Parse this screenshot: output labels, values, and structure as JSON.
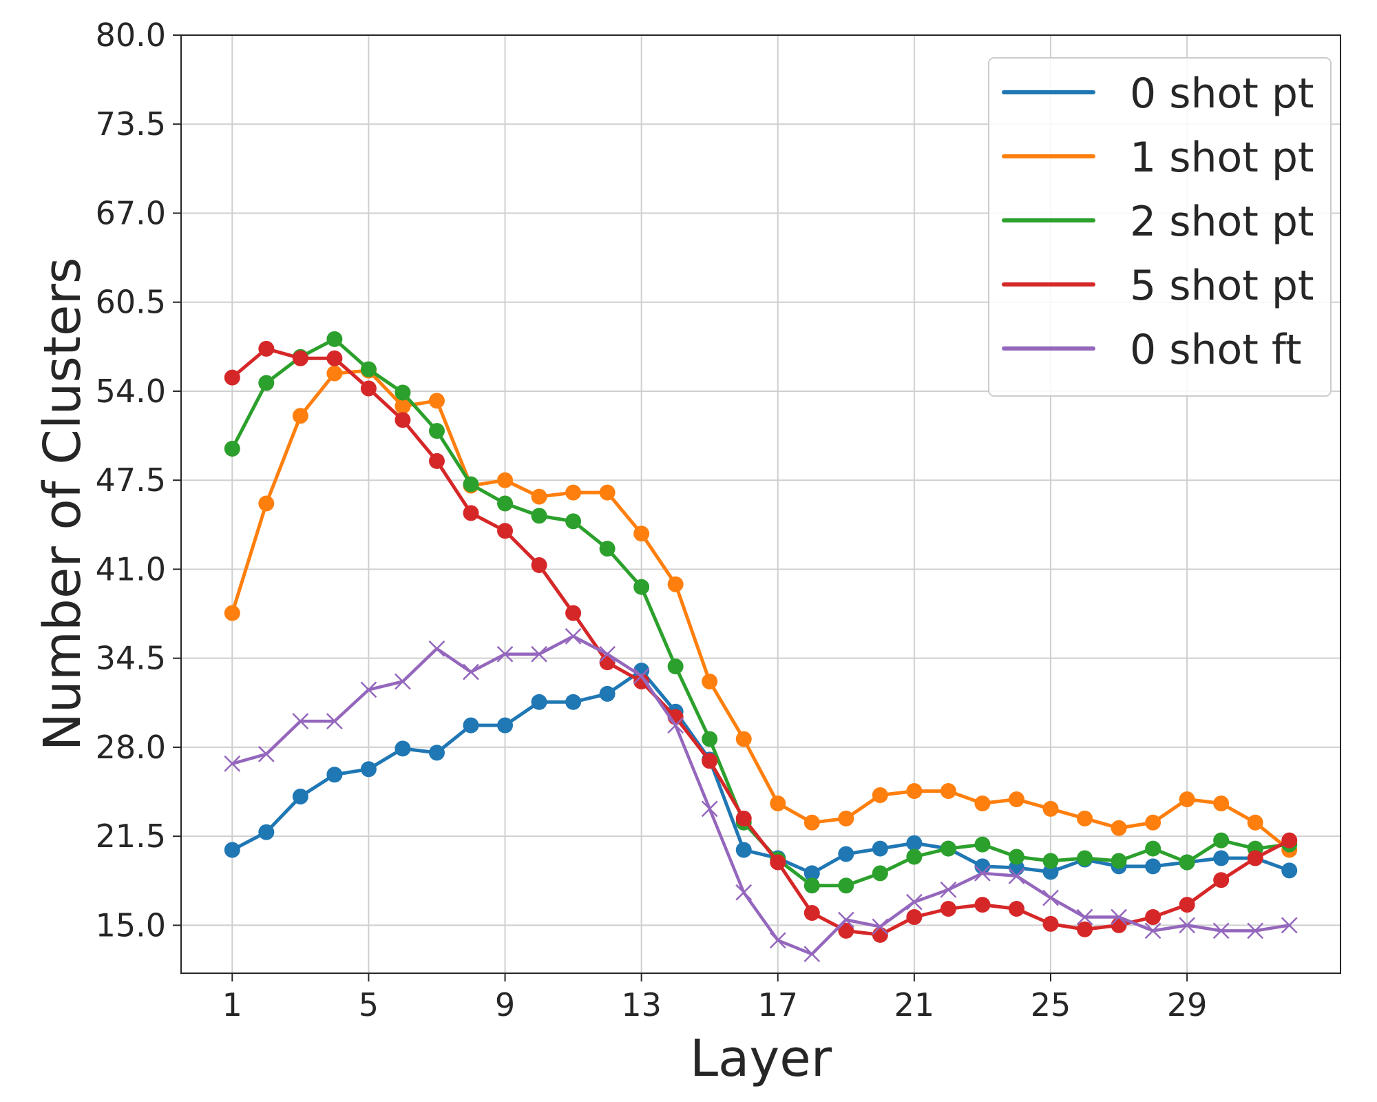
{
  "chart_data": {
    "type": "line",
    "title": "",
    "xlabel": "Layer",
    "ylabel": "Number of Clusters",
    "xlim": [
      -0.5,
      33.5
    ],
    "ylim": [
      11.5,
      80.0
    ],
    "xticks": [
      1,
      5,
      9,
      13,
      17,
      21,
      25,
      29
    ],
    "yticks": [
      15.0,
      21.5,
      28.0,
      34.5,
      41.0,
      47.5,
      54.0,
      60.5,
      67.0,
      73.5,
      80.0
    ],
    "xtick_labels": [
      "1",
      "5",
      "9",
      "13",
      "17",
      "21",
      "25",
      "29"
    ],
    "ytick_labels": [
      "15.0",
      "21.5",
      "28.0",
      "34.5",
      "41.0",
      "47.5",
      "54.0",
      "60.5",
      "67.0",
      "73.5",
      "80.0"
    ],
    "grid": true,
    "legend_position": "top-right",
    "x": [
      1,
      2,
      3,
      4,
      5,
      6,
      7,
      8,
      9,
      10,
      11,
      12,
      13,
      14,
      15,
      16,
      17,
      18,
      19,
      20,
      21,
      22,
      23,
      24,
      25,
      26,
      27,
      28,
      29,
      30,
      31,
      32
    ],
    "series": [
      {
        "name": "0 shot pt",
        "color": "#1f77b4",
        "marker": "circle",
        "values": [
          20.5,
          21.8,
          24.4,
          26.0,
          26.4,
          27.9,
          27.6,
          29.6,
          29.6,
          31.3,
          31.3,
          31.9,
          33.6,
          30.6,
          27.1,
          20.5,
          19.9,
          18.8,
          20.2,
          20.6,
          21.0,
          20.6,
          19.3,
          19.2,
          18.9,
          19.8,
          19.3,
          19.3,
          19.6,
          19.9,
          19.9,
          19.0
        ]
      },
      {
        "name": "1 shot pt",
        "color": "#ff7f0e",
        "marker": "circle",
        "values": [
          37.8,
          45.8,
          52.2,
          55.3,
          55.5,
          52.9,
          53.3,
          47.1,
          47.5,
          46.3,
          46.6,
          46.6,
          43.6,
          39.9,
          32.8,
          28.6,
          23.9,
          22.5,
          22.8,
          24.5,
          24.8,
          24.8,
          23.9,
          24.2,
          23.5,
          22.8,
          22.1,
          22.5,
          24.2,
          23.9,
          22.5,
          20.5
        ]
      },
      {
        "name": "2 shot pt",
        "color": "#2ca02c",
        "marker": "circle",
        "values": [
          49.8,
          54.6,
          56.5,
          57.8,
          55.6,
          53.9,
          51.1,
          47.2,
          45.8,
          44.9,
          44.5,
          42.5,
          39.7,
          33.9,
          28.6,
          22.5,
          19.8,
          17.9,
          17.9,
          18.8,
          20.0,
          20.6,
          20.9,
          20.0,
          19.7,
          19.9,
          19.7,
          20.6,
          19.6,
          21.2,
          20.6,
          20.9
        ]
      },
      {
        "name": "5 shot pt",
        "color": "#d62728",
        "marker": "circle",
        "values": [
          55.0,
          57.1,
          56.4,
          56.4,
          54.2,
          51.9,
          48.9,
          45.1,
          43.8,
          41.3,
          37.8,
          34.2,
          32.8,
          30.2,
          27.0,
          22.8,
          19.6,
          15.9,
          14.6,
          14.3,
          15.6,
          16.2,
          16.5,
          16.2,
          15.1,
          14.7,
          15.0,
          15.6,
          16.5,
          18.3,
          19.9,
          21.2
        ]
      },
      {
        "name": "0 shot ft",
        "color": "#9467bd",
        "marker": "x",
        "values": [
          26.8,
          27.5,
          29.9,
          29.9,
          32.2,
          32.8,
          35.2,
          33.5,
          34.8,
          34.8,
          36.1,
          34.8,
          33.2,
          29.6,
          23.5,
          17.4,
          13.9,
          12.9,
          15.4,
          14.9,
          16.7,
          17.6,
          18.8,
          18.6,
          17.0,
          15.6,
          15.6,
          14.6,
          15.0,
          14.6,
          14.6,
          15.0
        ]
      }
    ]
  }
}
